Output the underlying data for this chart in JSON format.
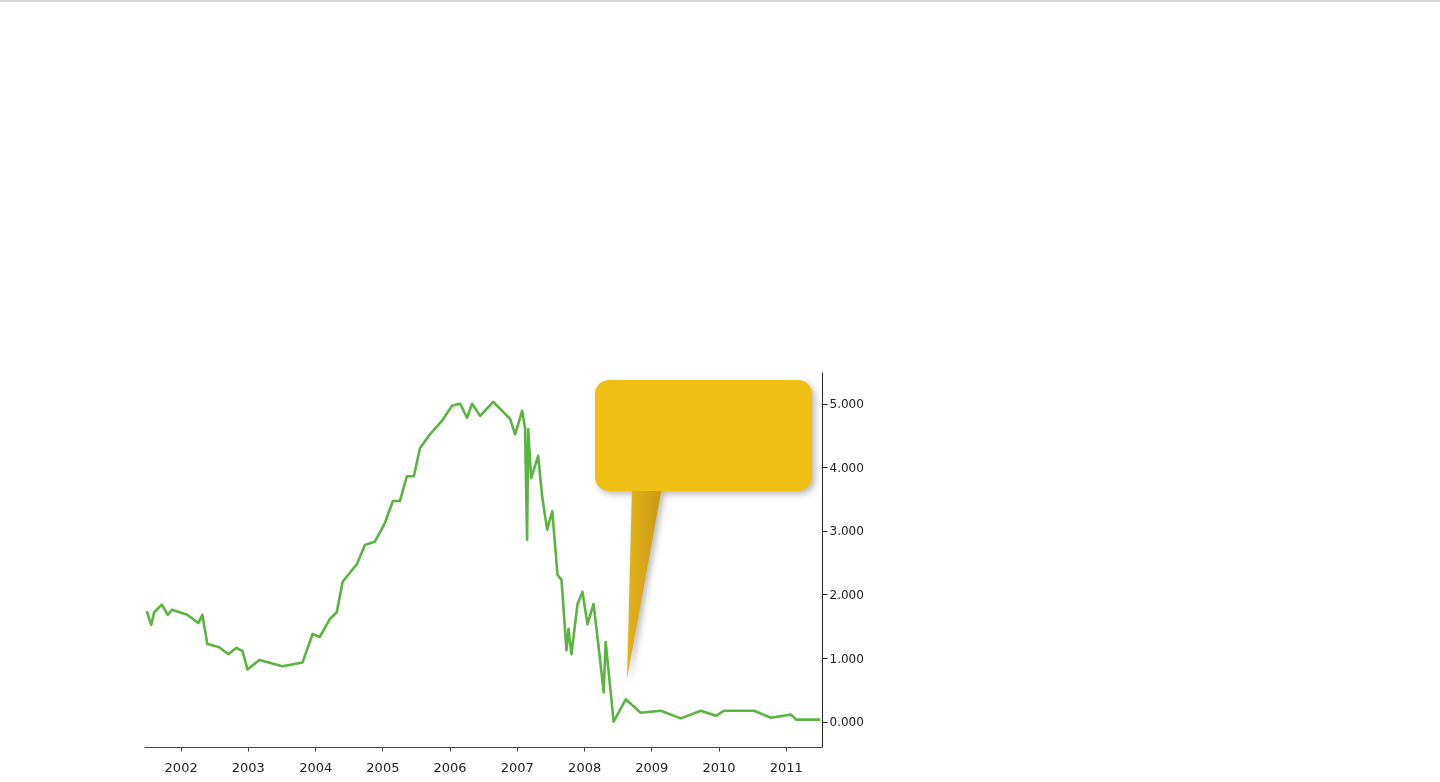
{
  "chart_data": {
    "type": "line",
    "x": [
      "2002-01-01",
      "2002-01-23",
      "2002-02-08",
      "2002-03-22",
      "2002-04-24",
      "2002-05-16",
      "2002-08-07",
      "2002-10-06",
      "2002-10-28",
      "2002-11-24",
      "2003-01-28",
      "2003-03-18",
      "2003-05-01",
      "2003-06-03",
      "2003-06-30",
      "2003-09-03",
      "2004-01-06",
      "2004-04-24",
      "2004-06-18",
      "2004-07-26",
      "2004-09-19",
      "2004-10-27",
      "2004-11-28",
      "2005-02-14",
      "2005-03-29",
      "2005-05-22",
      "2005-07-15",
      "2005-08-28",
      "2005-10-05",
      "2005-11-12",
      "2005-12-20",
      "2006-01-22",
      "2006-03-17",
      "2006-05-21",
      "2006-07-15",
      "2006-08-28",
      "2006-10-05",
      "2006-11-01",
      "2006-12-15",
      "2007-02-24",
      "2007-05-27",
      "2007-06-23",
      "2007-07-31",
      "2007-08-16",
      "2007-08-27",
      "2007-09-02",
      "2007-09-18",
      "2007-10-26",
      "2007-11-17",
      "2007-12-14",
      "2008-01-11",
      "2008-02-08",
      "2008-03-01",
      "2008-03-28",
      "2008-04-08",
      "2008-04-24",
      "2008-05-27",
      "2008-06-23",
      "2008-07-20",
      "2008-08-22",
      "2008-09-24",
      "2008-10-16",
      "2008-10-27",
      "2008-12-09",
      "2009-02-13",
      "2009-05-05",
      "2009-08-22",
      "2009-12-09",
      "2010-03-28",
      "2010-06-18",
      "2010-07-31",
      "2011-01-11",
      "2011-04-13",
      "2011-07-31",
      "2011-08-28",
      "2011-12-31"
    ],
    "series": [
      {
        "color": "#5ab540",
        "values": [
          1.72,
          1.52,
          1.72,
          1.84,
          1.68,
          1.76,
          1.68,
          1.55,
          1.68,
          1.22,
          1.17,
          1.06,
          1.16,
          1.11,
          0.82,
          0.97,
          0.87,
          0.93,
          1.38,
          1.33,
          1.61,
          1.72,
          2.2,
          2.48,
          2.78,
          2.83,
          3.12,
          3.47,
          3.47,
          3.86,
          3.86,
          4.3,
          4.52,
          4.73,
          4.97,
          5.0,
          4.78,
          5.0,
          4.81,
          5.03,
          4.76,
          4.52,
          4.89,
          4.62,
          2.86,
          4.6,
          3.83,
          4.18,
          3.54,
          3.02,
          3.31,
          2.31,
          2.23,
          1.12,
          1.46,
          1.06,
          1.85,
          2.04,
          1.53,
          1.85,
          1.04,
          0.46,
          1.25,
          0.0,
          0.35,
          0.14,
          0.17,
          0.05,
          0.17,
          0.09,
          0.17,
          0.17,
          0.06,
          0.11,
          0.03,
          0.03
        ]
      }
    ],
    "xlim": [
      "2001-12-15",
      "2012-01-15"
    ],
    "xticks": [
      {
        "value": "2002-07-02",
        "label": "2002"
      },
      {
        "value": "2003-07-02",
        "label": "2003"
      },
      {
        "value": "2004-07-02",
        "label": "2004"
      },
      {
        "value": "2005-07-02",
        "label": "2005"
      },
      {
        "value": "2006-07-02",
        "label": "2006"
      },
      {
        "value": "2007-07-02",
        "label": "2007"
      },
      {
        "value": "2008-07-02",
        "label": "2008"
      },
      {
        "value": "2009-07-02",
        "label": "2009"
      },
      {
        "value": "2010-07-02",
        "label": "2010"
      },
      {
        "value": "2011-07-02",
        "label": "2011"
      }
    ],
    "ylim": [
      -0.4,
      5.5
    ],
    "yticks": [
      {
        "value": 0,
        "label": "0.000"
      },
      {
        "value": 1,
        "label": "1.000"
      },
      {
        "value": 2,
        "label": "2.000"
      },
      {
        "value": 3,
        "label": "3.000"
      },
      {
        "value": 4,
        "label": "4.000"
      },
      {
        "value": 5,
        "label": "5.000"
      }
    ],
    "grid": false,
    "marker": "none",
    "line_style": "solid"
  }
}
